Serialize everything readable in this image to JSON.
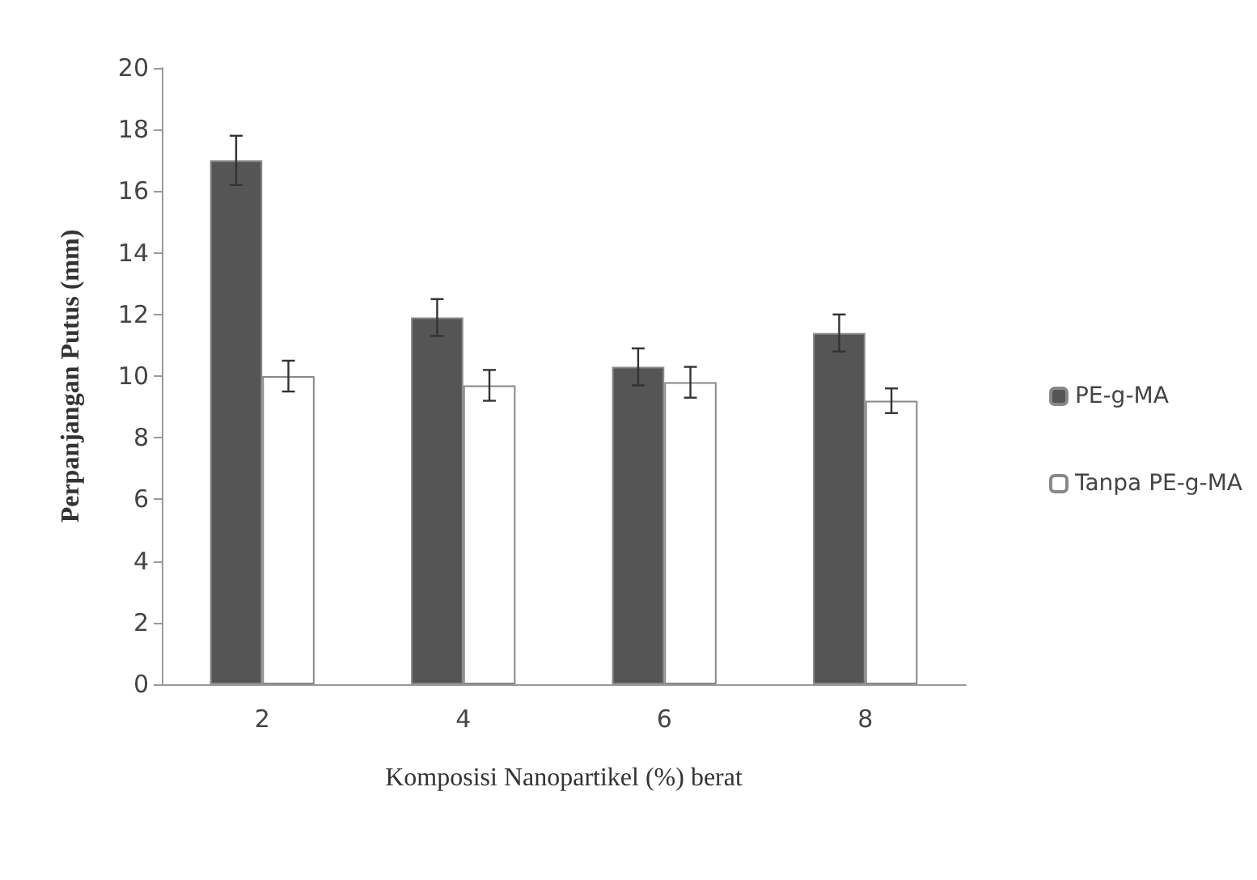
{
  "chart_data": {
    "type": "bar",
    "xlabel": "Komposisi Nanopartikel (%) berat",
    "ylabel": "Perpanjangan Putus (mm)",
    "categories": [
      "2",
      "4",
      "6",
      "8"
    ],
    "series": [
      {
        "name": "PE-g-MA",
        "color": "#555555",
        "values": [
          17.0,
          11.9,
          10.3,
          11.4
        ],
        "errors": [
          0.8,
          0.6,
          0.6,
          0.6
        ]
      },
      {
        "name": "Tanpa PE-g-MA",
        "color": "#ffffff",
        "values": [
          10.0,
          9.7,
          9.8,
          9.2
        ],
        "errors": [
          0.5,
          0.5,
          0.5,
          0.4
        ]
      }
    ],
    "ylim": [
      0,
      20
    ],
    "yticks": [
      0,
      2,
      4,
      6,
      8,
      10,
      12,
      14,
      16,
      18,
      20
    ],
    "grid": false,
    "legend": "right"
  }
}
